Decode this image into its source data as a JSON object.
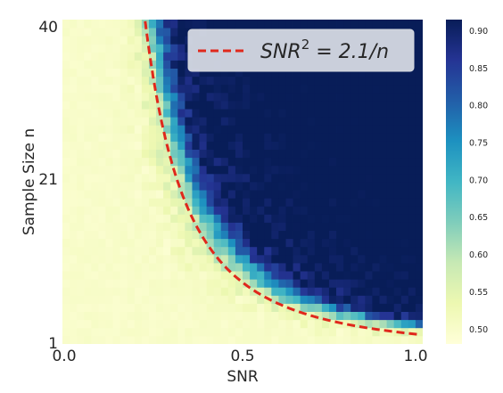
{
  "chart_data": {
    "type": "heatmap",
    "title": "",
    "xlabel": "SNR",
    "ylabel": "Sample Size n",
    "x_ticks": [
      "0.0",
      "0.5",
      "1.0"
    ],
    "y_ticks": [
      "1",
      "21",
      "40"
    ],
    "xlim": [
      0.0,
      1.0
    ],
    "ylim": [
      1,
      40
    ],
    "grid_cols": 50,
    "grid_rows": 40,
    "colormap": "YlGnBu",
    "colorbar": {
      "min": 0.48,
      "max": 0.915,
      "ticks": [
        "0.50",
        "0.55",
        "0.60",
        "0.65",
        "0.70",
        "0.75",
        "0.80",
        "0.85",
        "0.90"
      ]
    },
    "boundary_curve": {
      "equation": "SNR^2 = 2.1/n",
      "constant": 2.1,
      "style": "dashed",
      "color": "#e0281c"
    },
    "legend": {
      "label_prefix": "SNR",
      "label_exponent": "2",
      "label_suffix": " = 2.1/n",
      "placement": "top-right"
    }
  }
}
